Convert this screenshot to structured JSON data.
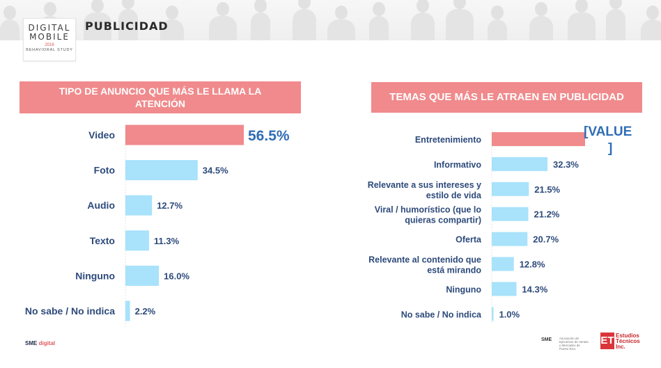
{
  "header": {
    "logo": {
      "line1": "DIGITAL",
      "line2": "MOBILE",
      "year": "2016",
      "sub": "BEHAVIORAL STUDY"
    },
    "title": "PUBLICIDAD"
  },
  "colors": {
    "highlight_bar": "#f08a8c",
    "bar": "#a8e2fb",
    "label": "#2d4a7b",
    "banner": "#f08a8c",
    "highlight_value": "#2f6db5"
  },
  "chart_data": [
    {
      "type": "bar",
      "orientation": "horizontal",
      "title": "TIPO DE ANUNCIO QUE MÁS LE LLAMA LA ATENCIÓN",
      "categories": [
        "Video",
        "Foto",
        "Audio",
        "Texto",
        "Ninguno",
        "No sabe / No indica"
      ],
      "values": [
        56.5,
        34.5,
        12.7,
        11.3,
        16.0,
        2.2
      ],
      "value_labels": [
        "56.5%",
        "34.5%",
        "12.7%",
        "11.3%",
        "16.0%",
        "2.2%"
      ],
      "highlight_index": 0,
      "xlim": [
        0,
        100
      ]
    },
    {
      "type": "bar",
      "orientation": "horizontal",
      "title": "TEMAS QUE MÁS LE ATRAEN EN PUBLICIDAD",
      "categories": [
        [
          "Entretenimiento"
        ],
        [
          "Informativo"
        ],
        [
          "Relevante a sus intereses y",
          "estilo de vida"
        ],
        [
          "Viral / humorístico (que lo",
          "quieras compartir)"
        ],
        [
          "Oferta"
        ],
        [
          "Relevante al contenido que",
          "está mirando"
        ],
        [
          "Ninguno"
        ],
        [
          "No sabe / No indica"
        ]
      ],
      "values": [
        null,
        32.3,
        21.5,
        21.2,
        20.7,
        12.8,
        14.3,
        1.0
      ],
      "value_labels": [
        "[VALUE]",
        "32.3%",
        "21.5%",
        "21.2%",
        "20.7%",
        "12.8%",
        "14.3%",
        "1.0%"
      ],
      "highlight_index": 0,
      "xlim": [
        0,
        100
      ]
    }
  ],
  "footer": {
    "sme_prefix": "SME",
    "sme_brand": "digital",
    "asme_mark": "SME",
    "asme_text": "Asociación de Ejecutivos de Ventas y Mercadeo de Puerto Rico",
    "et_mark": "ET",
    "et_text": [
      "Estudios",
      "Técnicos",
      "Inc."
    ]
  }
}
